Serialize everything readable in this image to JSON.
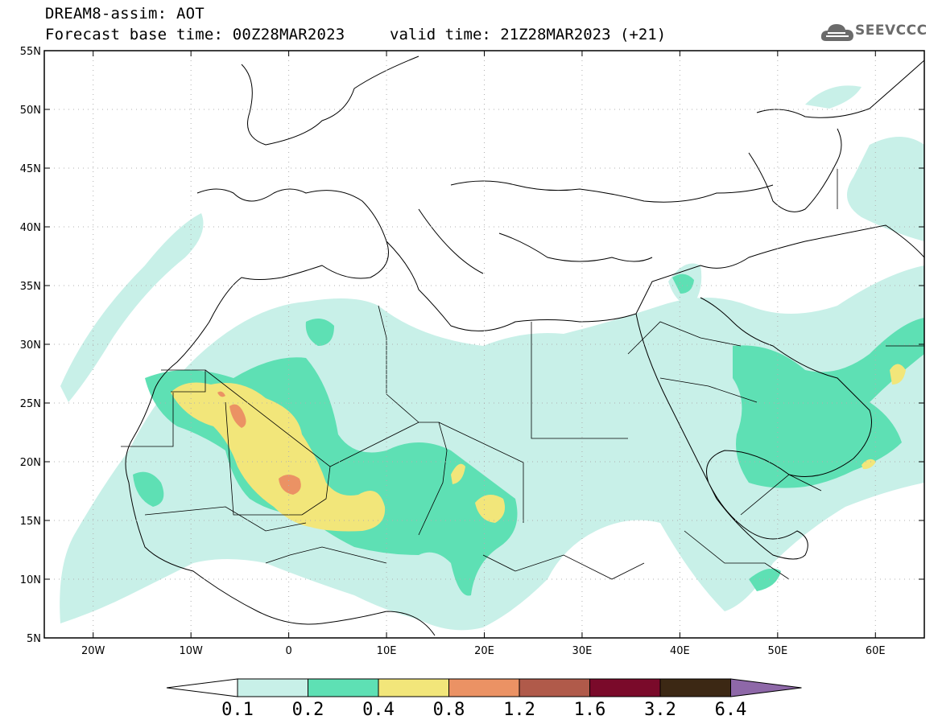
{
  "header": {
    "title": "DREAM8-assim: AOT",
    "base_time": "Forecast base time: 00Z28MAR2023",
    "valid_time": "valid time: 21Z28MAR2023 (+21)"
  },
  "logo": {
    "text": "SEEVCCC",
    "icon": "cloud-icon"
  },
  "map": {
    "lat_labels": [
      "55N",
      "50N",
      "45N",
      "40N",
      "35N",
      "30N",
      "25N",
      "20N",
      "15N",
      "10N",
      "5N"
    ],
    "lon_labels": [
      "20W",
      "10W",
      "0",
      "10E",
      "20E",
      "30E",
      "40E",
      "50E",
      "60E"
    ],
    "lon_range": [
      -25,
      65
    ],
    "lat_range": [
      5,
      55
    ],
    "gridlines": "dotted"
  },
  "colorbar": {
    "levels": [
      "0.1",
      "0.2",
      "0.4",
      "0.8",
      "1.2",
      "1.6",
      "3.2",
      "6.4"
    ],
    "colors": [
      "#c8f0e8",
      "#5ee0b4",
      "#f2e67a",
      "#eb9264",
      "#b05a4a",
      "#7a0a2a",
      "#3c2814",
      "#8e68a8"
    ]
  }
}
